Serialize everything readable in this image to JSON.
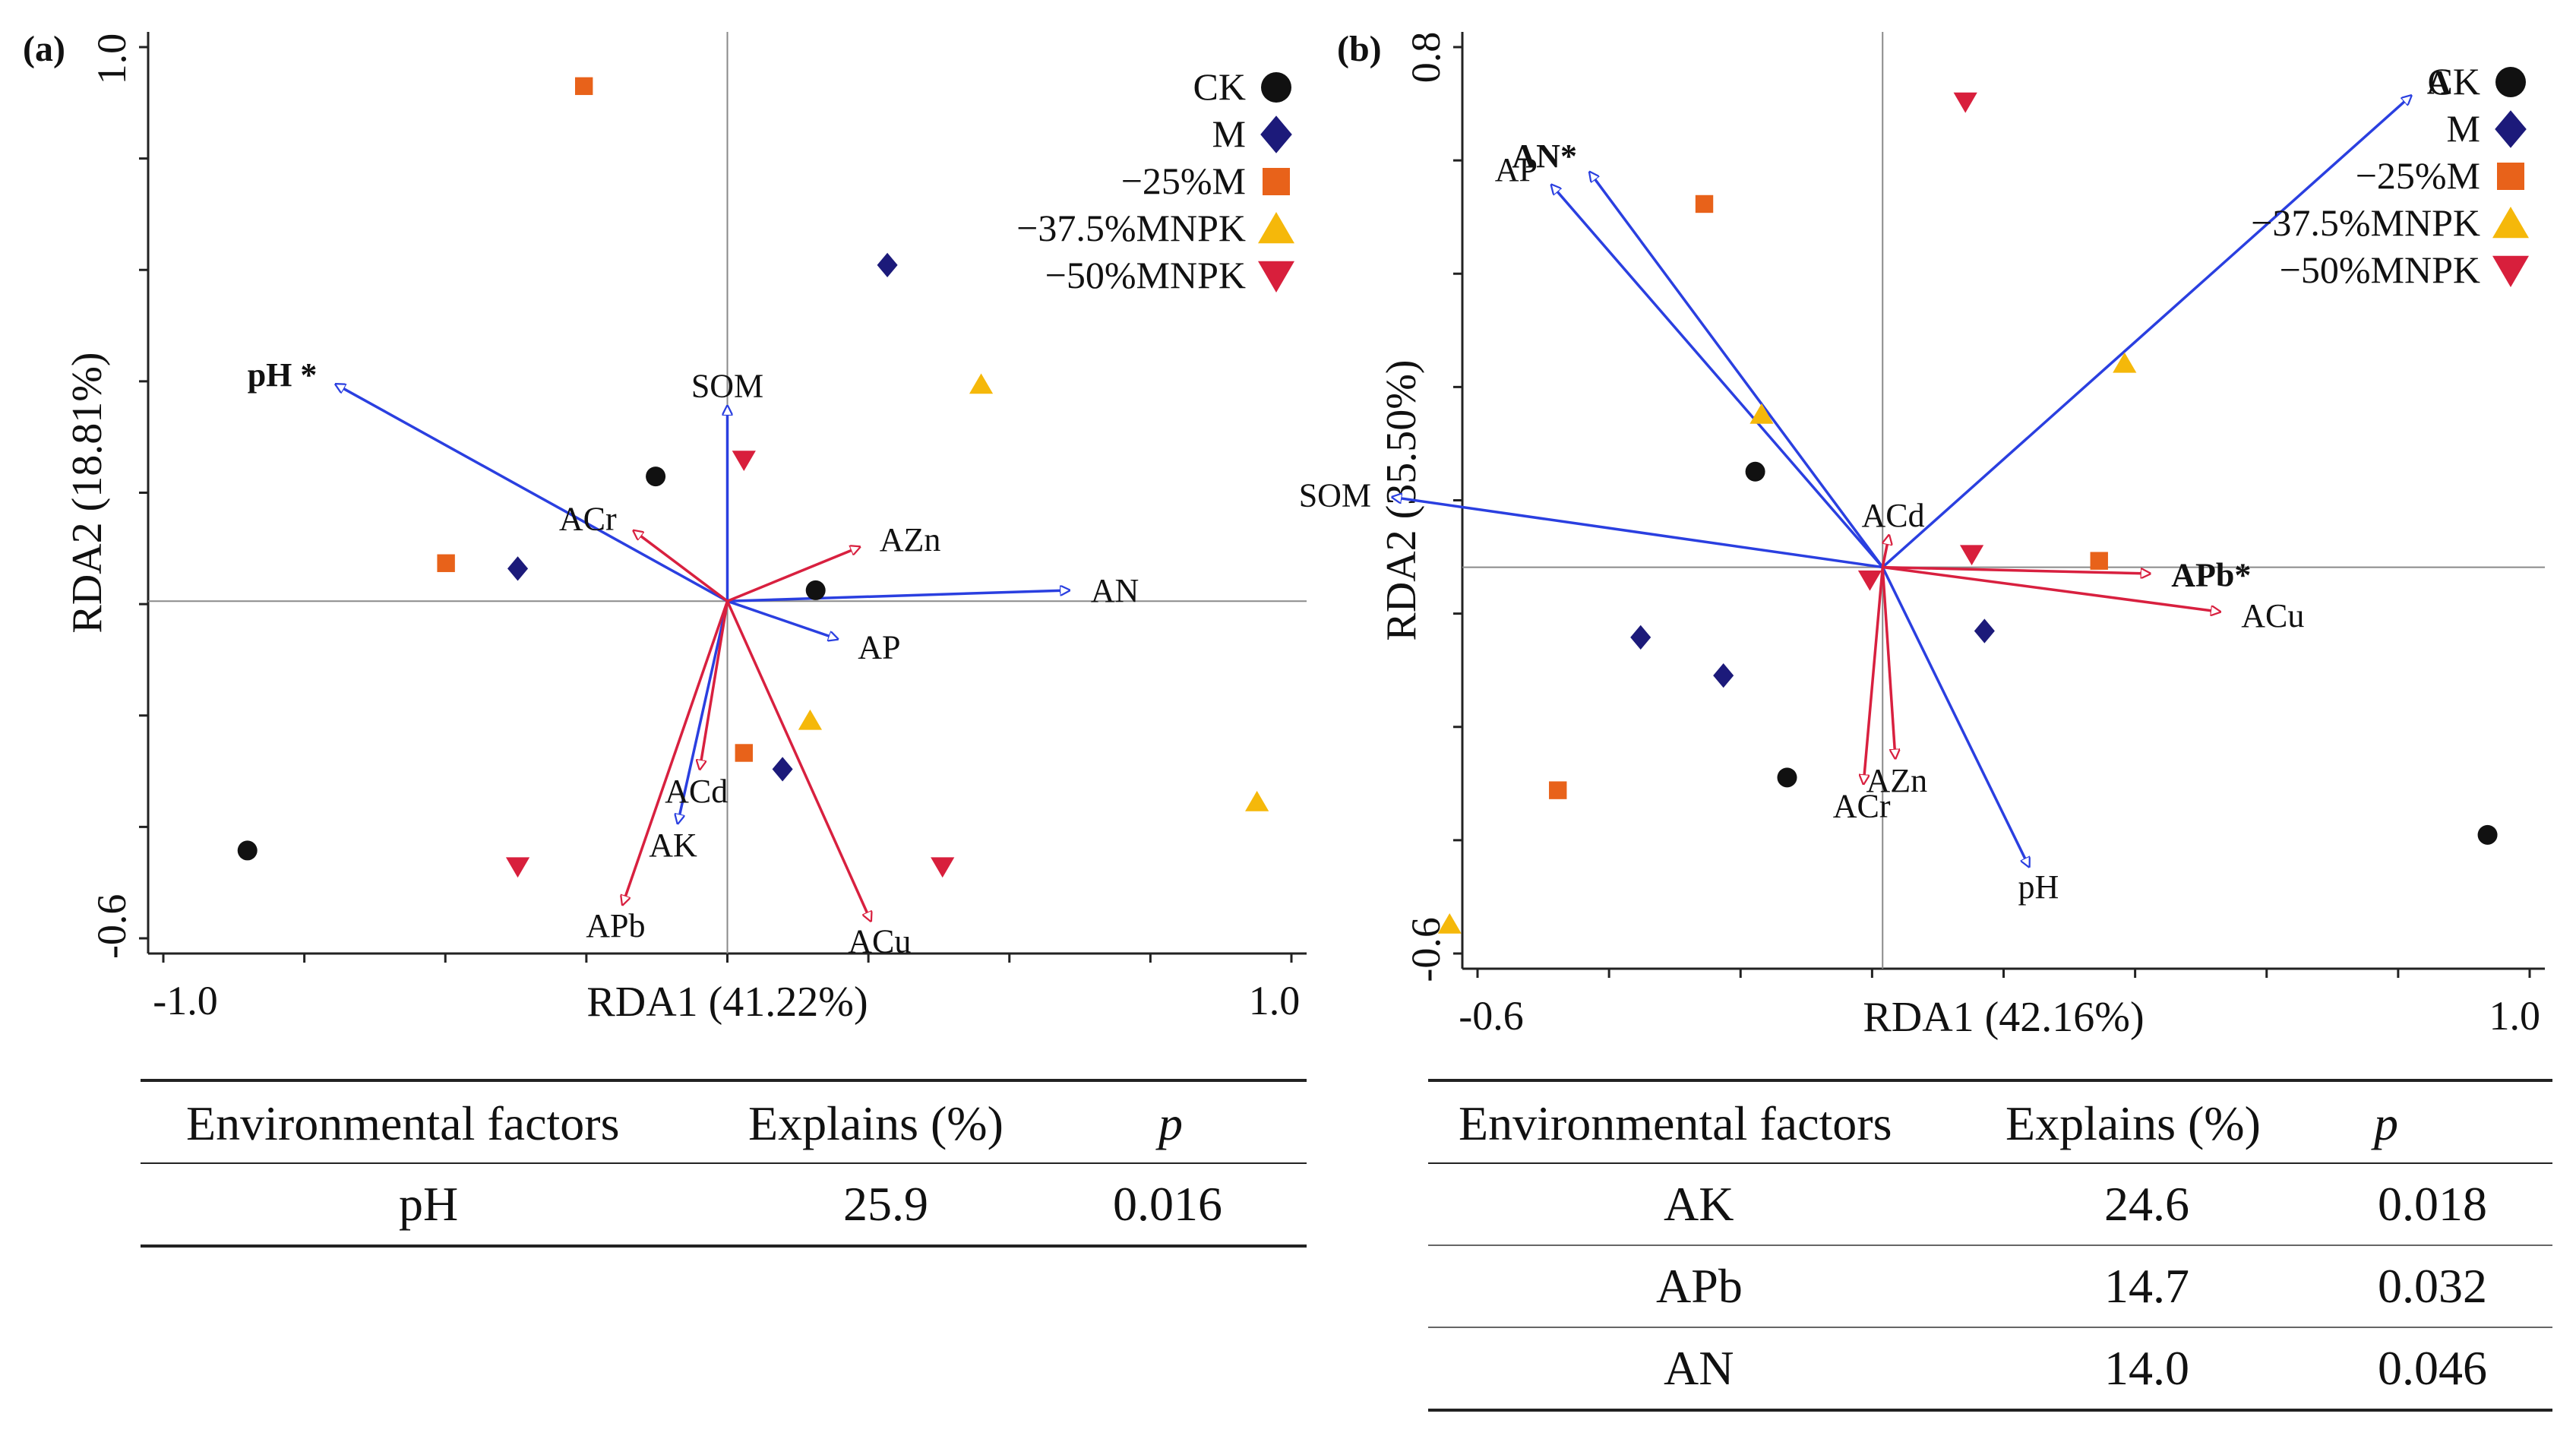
{
  "colors": {
    "CK": "#111111",
    "M": "#1c1a7a",
    "minus25M": "#e8621a",
    "minus37MNPK": "#f5b80a",
    "minus50MNPK": "#d81f3c",
    "env_arrow": "#2a3fe0",
    "metal_arrow": "#d8203f",
    "axis": "#222222",
    "crosshair": "#8a8a8a"
  },
  "chart_data": [
    {
      "panel_label": "(a)",
      "type": "scatter",
      "title": "",
      "xlabel": "RDA1 (41.22%)",
      "ylabel": "RDA2 (18.81%)",
      "xlim": [
        -1.05,
        1.05
      ],
      "ylim": [
        -0.65,
        1.05
      ],
      "x_tick_labels": [
        "-1.0",
        "1.0"
      ],
      "x_tick_values": [
        -1.0,
        1.0
      ],
      "y_tick_labels": [
        "-0.6",
        "1.0"
      ],
      "y_tick_values": [
        -0.6,
        1.0
      ],
      "legend": {
        "position": "top-right",
        "entries": [
          {
            "key": "CK",
            "label": "CK",
            "marker": "circle"
          },
          {
            "key": "M",
            "label": "M",
            "marker": "diamond"
          },
          {
            "key": "minus25M",
            "label": "−25%M",
            "marker": "square"
          },
          {
            "key": "minus37MNPK",
            "label": "−37.5%MNPK",
            "marker": "triangle-up"
          },
          {
            "key": "minus50MNPK",
            "label": "−50%MNPK",
            "marker": "triangle-down"
          }
        ]
      },
      "points": [
        {
          "group": "CK",
          "x": -0.13,
          "y": 0.23
        },
        {
          "group": "CK",
          "x": 0.16,
          "y": 0.02
        },
        {
          "group": "CK",
          "x": -0.87,
          "y": -0.46
        },
        {
          "group": "M",
          "x": -0.38,
          "y": 0.06
        },
        {
          "group": "M",
          "x": 0.29,
          "y": 0.62
        },
        {
          "group": "M",
          "x": 0.1,
          "y": -0.31
        },
        {
          "group": "minus25M",
          "x": -0.26,
          "y": 0.95
        },
        {
          "group": "minus25M",
          "x": -0.51,
          "y": 0.07
        },
        {
          "group": "minus25M",
          "x": 0.03,
          "y": -0.28
        },
        {
          "group": "minus37MNPK",
          "x": 0.46,
          "y": 0.4
        },
        {
          "group": "minus37MNPK",
          "x": 0.15,
          "y": -0.22
        },
        {
          "group": "minus37MNPK",
          "x": 0.96,
          "y": -0.37
        },
        {
          "group": "minus50MNPK",
          "x": 0.03,
          "y": 0.26
        },
        {
          "group": "minus50MNPK",
          "x": -0.38,
          "y": -0.49
        },
        {
          "group": "minus50MNPK",
          "x": 0.39,
          "y": -0.49
        }
      ],
      "env_arrows": [
        {
          "label": "pH *",
          "bold": true,
          "x": -0.71,
          "y": 0.4
        },
        {
          "label": "SOM",
          "bold": false,
          "x": 0.0,
          "y": 0.36
        },
        {
          "label": "AN",
          "bold": false,
          "x": 0.62,
          "y": 0.02
        },
        {
          "label": "AP",
          "bold": false,
          "x": 0.2,
          "y": -0.07
        },
        {
          "label": "AK",
          "bold": false,
          "x": -0.09,
          "y": -0.41
        }
      ],
      "metal_arrows": [
        {
          "label": "ACr",
          "bold": false,
          "x": -0.17,
          "y": 0.13
        },
        {
          "label": "AZn",
          "bold": false,
          "x": 0.24,
          "y": 0.1
        },
        {
          "label": "ACd",
          "bold": false,
          "x": -0.05,
          "y": -0.31
        },
        {
          "label": "APb",
          "bold": false,
          "x": -0.19,
          "y": -0.56
        },
        {
          "label": "ACu",
          "bold": false,
          "x": 0.26,
          "y": -0.59
        }
      ],
      "table": {
        "headers": [
          "Environmental factors",
          "Explains (%)",
          "p"
        ],
        "rows": [
          [
            "pH",
            "25.9",
            "0.016"
          ]
        ]
      }
    },
    {
      "panel_label": "(b)",
      "type": "scatter",
      "title": "",
      "xlabel": "RDA1 (42.16%)",
      "ylabel": "RDA2 (35.50%)",
      "xlim": [
        -0.66,
        1.04
      ],
      "ylim": [
        -0.63,
        0.84
      ],
      "x_tick_labels": [
        "-0.6",
        "1.0"
      ],
      "x_tick_values": [
        -0.6,
        1.0
      ],
      "y_tick_labels": [
        "-0.6",
        "0.8"
      ],
      "y_tick_values": [
        -0.6,
        0.8
      ],
      "legend": {
        "position": "top-right",
        "entries": [
          {
            "key": "CK",
            "label": "CK",
            "marker": "circle"
          },
          {
            "key": "M",
            "label": "M",
            "marker": "diamond"
          },
          {
            "key": "minus25M",
            "label": "−25%M",
            "marker": "square"
          },
          {
            "key": "minus37MNPK",
            "label": "−37.5%MNPK",
            "marker": "triangle-up"
          },
          {
            "key": "minus50MNPK",
            "label": "−50%MNPK",
            "marker": "triangle-down"
          }
        ]
      },
      "points": [
        {
          "group": "CK",
          "x": -0.2,
          "y": 0.15
        },
        {
          "group": "CK",
          "x": -0.15,
          "y": -0.33
        },
        {
          "group": "CK",
          "x": 0.95,
          "y": -0.42
        },
        {
          "group": "M",
          "x": -0.38,
          "y": -0.11
        },
        {
          "group": "M",
          "x": -0.25,
          "y": -0.17
        },
        {
          "group": "M",
          "x": 0.16,
          "y": -0.1
        },
        {
          "group": "minus25M",
          "x": -0.28,
          "y": 0.57
        },
        {
          "group": "minus25M",
          "x": -0.51,
          "y": -0.35
        },
        {
          "group": "minus25M",
          "x": 0.34,
          "y": 0.01
        },
        {
          "group": "minus37MNPK",
          "x": -0.19,
          "y": 0.24
        },
        {
          "group": "minus37MNPK",
          "x": 0.38,
          "y": 0.32
        },
        {
          "group": "minus37MNPK",
          "x": -0.68,
          "y": -0.56
        },
        {
          "group": "minus50MNPK",
          "x": 0.13,
          "y": 0.73
        },
        {
          "group": "minus50MNPK",
          "x": 0.14,
          "y": 0.02
        },
        {
          "group": "minus50MNPK",
          "x": -0.02,
          "y": -0.02
        }
      ],
      "env_arrows": [
        {
          "label": "AN*",
          "bold": true,
          "x": -0.46,
          "y": 0.62
        },
        {
          "label": "AP",
          "bold": false,
          "x": -0.52,
          "y": 0.6
        },
        {
          "label": "A",
          "bold": true,
          "x": 0.83,
          "y": 0.74
        },
        {
          "label": "SOM",
          "bold": false,
          "x": -0.77,
          "y": 0.11
        },
        {
          "label": "pH",
          "bold": false,
          "x": 0.23,
          "y": -0.47
        }
      ],
      "metal_arrows": [
        {
          "label": "ACd",
          "bold": false,
          "x": 0.01,
          "y": 0.05
        },
        {
          "label": "APb*",
          "bold": true,
          "x": 0.42,
          "y": -0.01
        },
        {
          "label": "ACu",
          "bold": false,
          "x": 0.53,
          "y": -0.07
        },
        {
          "label": "AZn",
          "bold": false,
          "x": 0.02,
          "y": -0.3
        },
        {
          "label": "ACr",
          "bold": false,
          "x": -0.03,
          "y": -0.34
        }
      ],
      "table": {
        "headers": [
          "Environmental factors",
          "Explains (%)",
          "p"
        ],
        "rows": [
          [
            "AK",
            "24.6",
            "0.018"
          ],
          [
            "APb",
            "14.7",
            "0.032"
          ],
          [
            "AN",
            "14.0",
            "0.046"
          ]
        ]
      }
    }
  ]
}
